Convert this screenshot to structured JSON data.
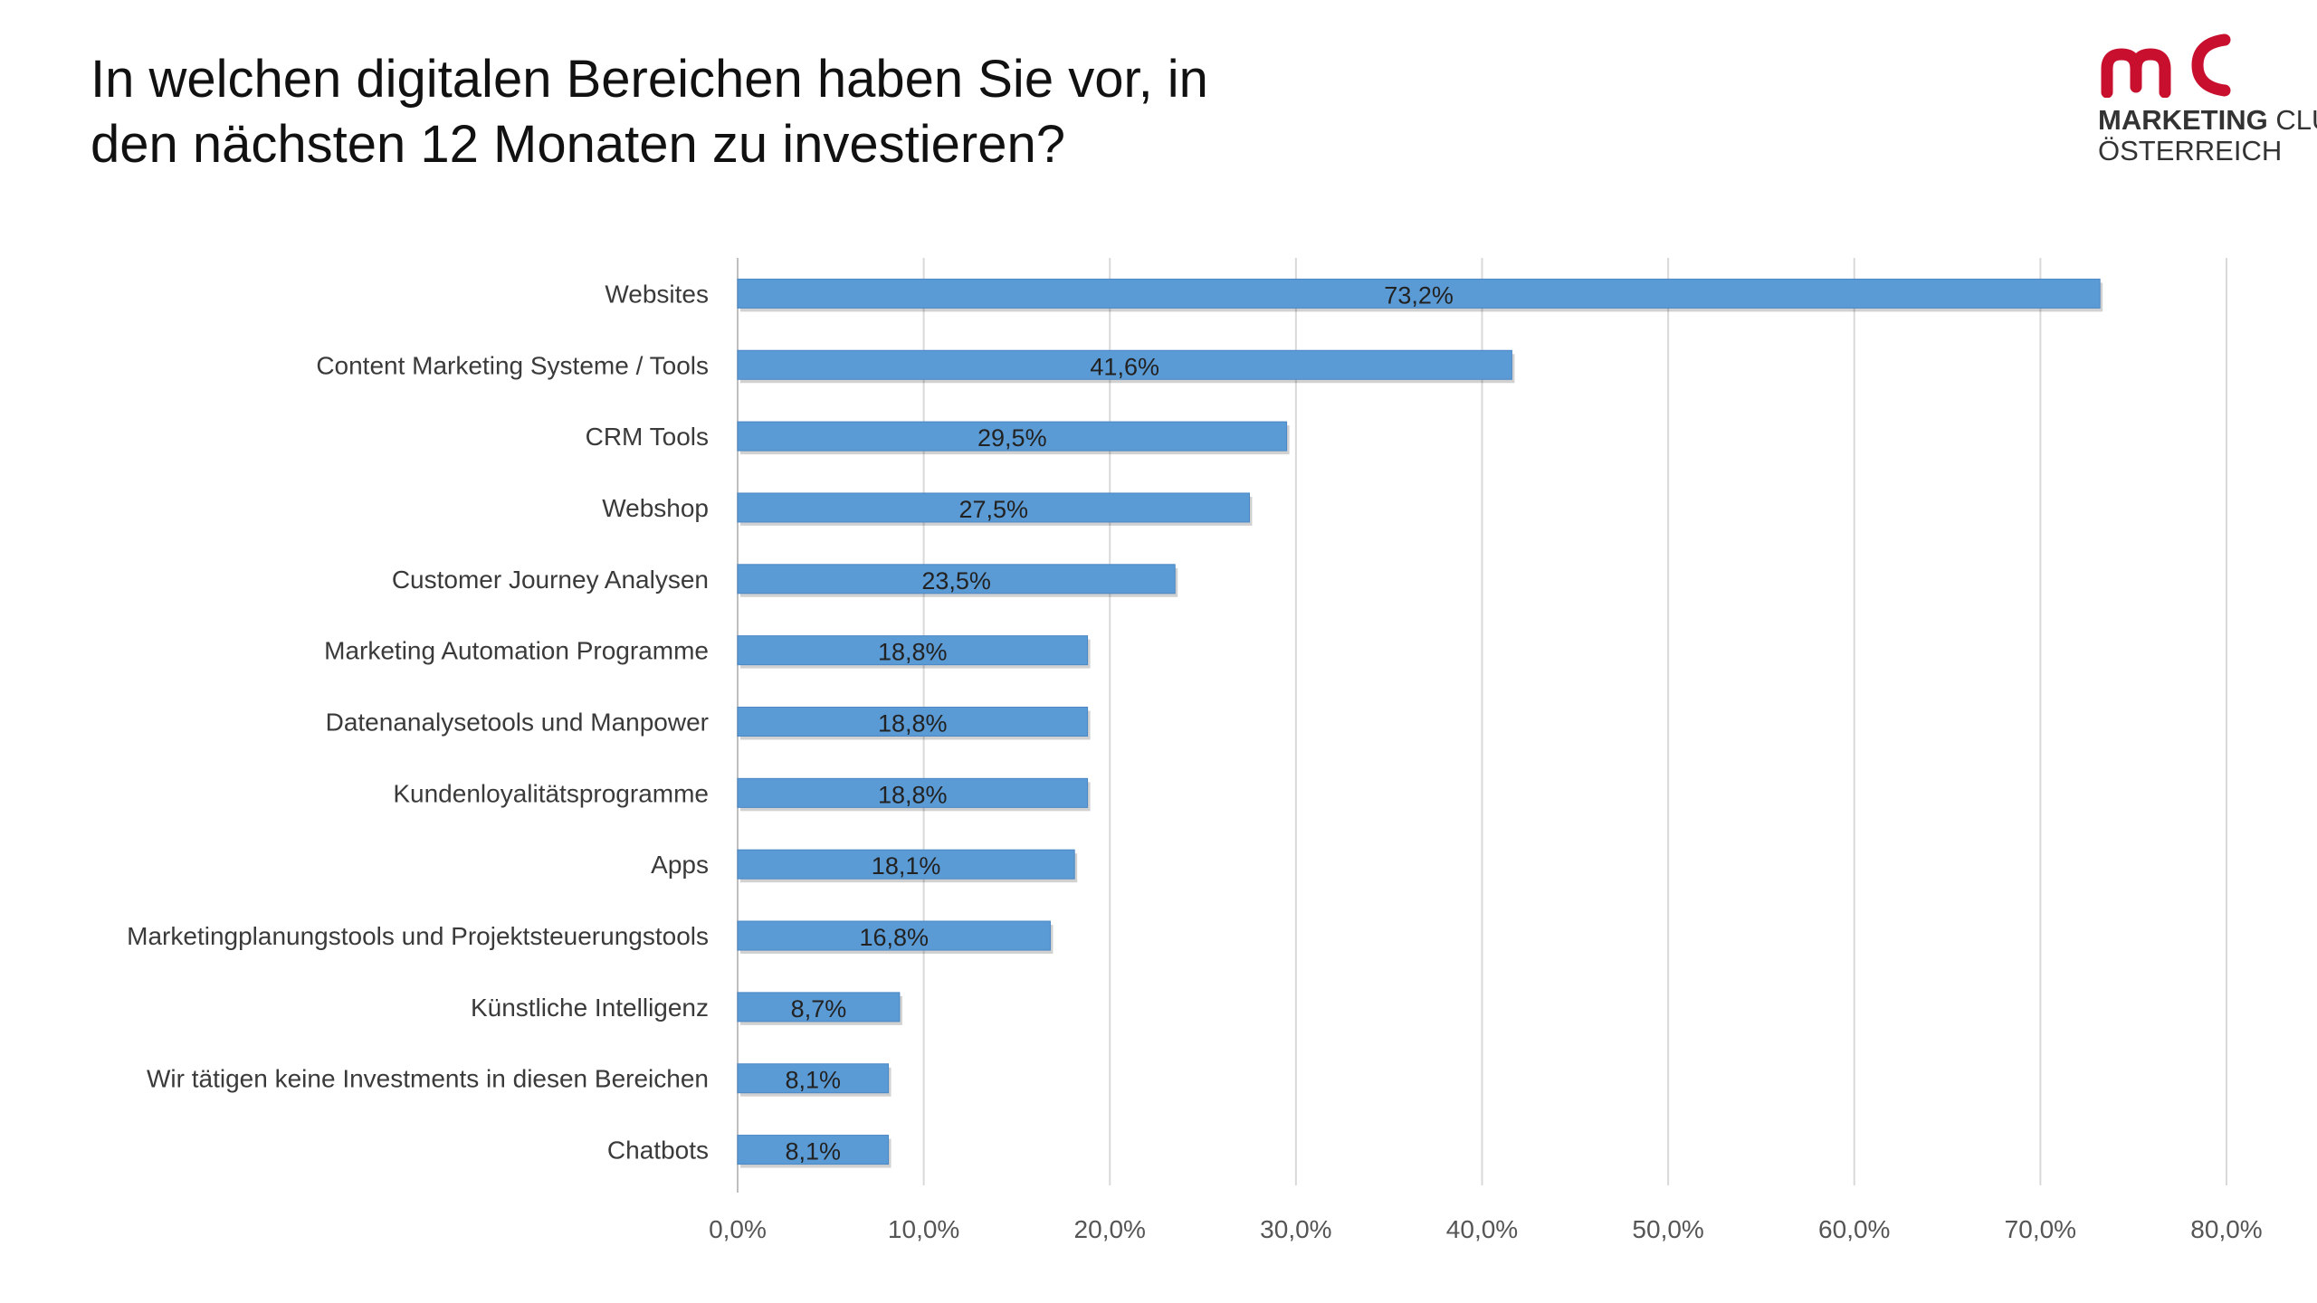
{
  "title": {
    "line1": "In welchen digitalen Bereichen haben Sie vor, in",
    "line2": "den nächsten 12 Monaten zu investieren?"
  },
  "logo": {
    "line1_bold": "MARKETING",
    "line1_rest": " CLUB",
    "line2": "ÖSTERREICH",
    "color": "#c8102e"
  },
  "colors": {
    "bar": "#5b9bd5",
    "bar_edge": "#4a86c4",
    "grid": "#d9d9d9",
    "axis": "#bfbfbf"
  },
  "chart_data": {
    "type": "bar",
    "orientation": "horizontal",
    "categories": [
      "Websites",
      "Content Marketing Systeme / Tools",
      "CRM Tools",
      "Webshop",
      "Customer Journey Analysen",
      "Marketing Automation Programme",
      "Datenanalysetools und Manpower",
      "Kundenloyalitätsprogramme",
      "Apps",
      "Marketingplanungstools und Projektsteuerungstools",
      "Künstliche Intelligenz",
      "Wir tätigen keine Investments in diesen Bereichen",
      "Chatbots"
    ],
    "values": [
      73.2,
      41.6,
      29.5,
      27.5,
      23.5,
      18.8,
      18.8,
      18.8,
      18.1,
      16.8,
      8.7,
      8.1,
      8.1
    ],
    "value_labels": [
      "73,2%",
      "41,6%",
      "29,5%",
      "27,5%",
      "23,5%",
      "18,8%",
      "18,8%",
      "18,8%",
      "18,1%",
      "16,8%",
      "8,7%",
      "8,1%",
      "8,1%"
    ],
    "xlim": [
      0,
      80
    ],
    "ticks": [
      0,
      10,
      20,
      30,
      40,
      50,
      60,
      70,
      80
    ],
    "tick_labels": [
      "0,0%",
      "10,0%",
      "20,0%",
      "30,0%",
      "40,0%",
      "50,0%",
      "60,0%",
      "70,0%",
      "80,0%"
    ],
    "grid": true,
    "legend": "none"
  }
}
